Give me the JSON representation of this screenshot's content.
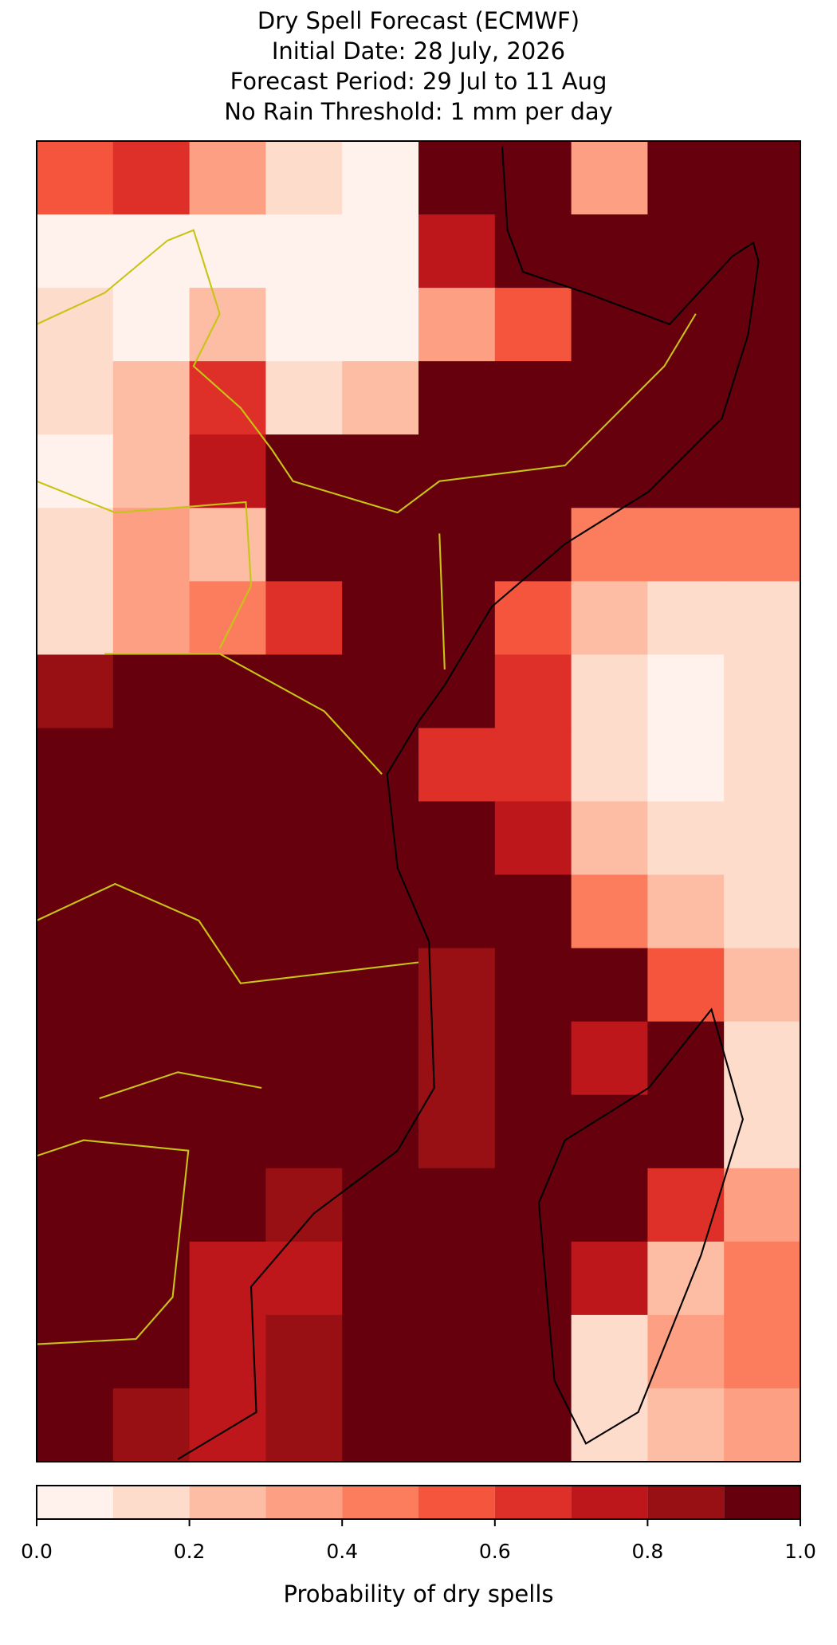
{
  "chart_data": {
    "type": "grid_map",
    "title": [
      "Dry Spell Forecast (ECMWF)",
      "Initial Date: 28 July, 2026",
      "Forecast Period: 29 Jul to 11 Aug",
      "No Rain Threshold: 1 mm per day"
    ],
    "values": [
      [
        0.5,
        0.6,
        0.3,
        0.1,
        0.0,
        1.0,
        0.9,
        0.3,
        1.0,
        1.0
      ],
      [
        0.05,
        0.0,
        0.05,
        0.0,
        0.0,
        0.7,
        0.95,
        1.0,
        1.0,
        1.0
      ],
      [
        0.1,
        0.05,
        0.2,
        0.0,
        0.0,
        0.3,
        0.5,
        1.0,
        1.0,
        1.0
      ],
      [
        0.1,
        0.2,
        0.6,
        0.1,
        0.2,
        1.0,
        1.0,
        1.0,
        1.0,
        1.0
      ],
      [
        0.05,
        0.2,
        0.7,
        1.0,
        1.0,
        1.0,
        1.0,
        1.0,
        1.0,
        0.9
      ],
      [
        0.1,
        0.3,
        0.2,
        1.0,
        1.0,
        1.0,
        1.0,
        0.4,
        0.4,
        0.4
      ],
      [
        0.1,
        0.3,
        0.4,
        0.6,
        1.0,
        1.0,
        0.5,
        0.2,
        0.1,
        0.15
      ],
      [
        0.8,
        0.9,
        1.0,
        1.0,
        1.0,
        1.0,
        0.6,
        0.1,
        0.05,
        0.1
      ],
      [
        1.0,
        1.0,
        1.0,
        1.0,
        1.0,
        0.6,
        0.6,
        0.1,
        0.05,
        0.1
      ],
      [
        1.0,
        1.0,
        1.0,
        1.0,
        1.0,
        1.0,
        0.7,
        0.2,
        0.1,
        0.1
      ],
      [
        1.0,
        1.0,
        1.0,
        1.0,
        1.0,
        1.0,
        1.0,
        0.4,
        0.2,
        0.15
      ],
      [
        1.0,
        1.0,
        1.0,
        1.0,
        1.0,
        0.8,
        1.0,
        0.9,
        0.5,
        0.2
      ],
      [
        1.0,
        1.0,
        1.0,
        1.0,
        1.0,
        0.8,
        1.0,
        0.7,
        1.0,
        0.1
      ],
      [
        1.0,
        1.0,
        1.0,
        1.0,
        1.0,
        0.8,
        1.0,
        1.0,
        0.9,
        0.1
      ],
      [
        1.0,
        1.0,
        1.0,
        0.8,
        0.9,
        1.0,
        1.0,
        1.0,
        0.6,
        0.3
      ],
      [
        1.0,
        1.0,
        0.7,
        0.7,
        0.9,
        1.0,
        1.0,
        0.7,
        0.2,
        0.4
      ],
      [
        1.0,
        1.0,
        0.7,
        0.8,
        1.0,
        1.0,
        1.0,
        0.1,
        0.3,
        0.4
      ],
      [
        1.0,
        0.8,
        0.7,
        0.8,
        1.0,
        1.0,
        1.0,
        0.1,
        0.2,
        0.3
      ]
    ],
    "colorbar": {
      "bounds": [
        0,
        0.1,
        0.2,
        0.3,
        0.4,
        0.5,
        0.6,
        0.7,
        0.8,
        0.9,
        1
      ],
      "colors": [
        "#fff2ec",
        "#fedccc",
        "#fcbda4",
        "#fc9f82",
        "#fb7d5d",
        "#f5553c",
        "#df2f29",
        "#bd161b",
        "#981014",
        "#67000d"
      ],
      "xlim": [
        0,
        1
      ],
      "xticks": [
        {
          "value": 0,
          "label": "0.0"
        },
        0.2,
        0.4,
        0.6,
        0.8,
        {
          "value": 1,
          "label": "1.0"
        }
      ],
      "label": "Probability of dry spells"
    }
  }
}
